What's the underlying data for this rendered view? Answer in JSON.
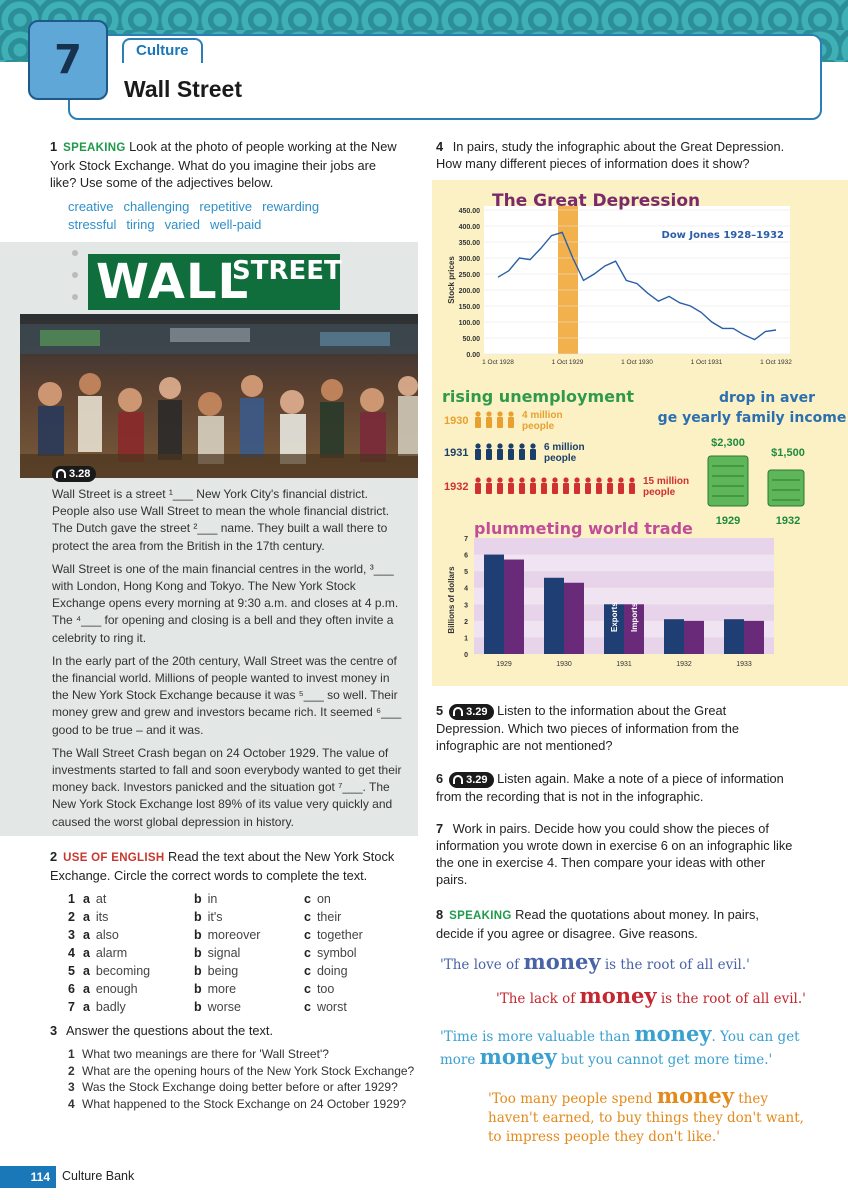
{
  "header": {
    "unit_number": "7",
    "section_tab": "Culture",
    "title": "Wall Street"
  },
  "q1": {
    "number": "1",
    "label": "SPEAKING",
    "text": "Look at the photo of people working at the New York Stock Exchange. What do you imagine their jobs are like? Use some of the adjectives below.",
    "adjectives": [
      "creative",
      "challenging",
      "repetitive",
      "rewarding",
      "stressful",
      "tiring",
      "varied",
      "well-paid"
    ]
  },
  "article": {
    "banner_big": "WALL",
    "banner_small": "STREET",
    "audio": "3.28",
    "paragraphs": [
      "Wall Street is a street ¹___ New York City's financial district. People also use Wall Street to mean the whole financial district. The Dutch gave the street ²___ name. They built a wall there to protect the area from the British in the 17th century.",
      "Wall Street is one of the main financial centres in the world, ³___ with London, Hong Kong and Tokyo. The New York Stock Exchange opens every morning at 9:30 a.m. and closes at 4 p.m. The ⁴___ for opening and closing is a bell and they often invite a celebrity to ring it.",
      "In the early part of the 20th century, Wall Street was the centre of the financial world. Millions of people wanted to invest money in the New York Stock Exchange because it was ⁵___ so well. Their money grew and grew and investors became rich. It seemed ⁶___ good to be true – and it was.",
      "The Wall Street Crash began on 24 October 1929. The value of investments started to fall and soon everybody wanted to get their money back. Investors panicked and the situation got ⁷___. The New York Stock Exchange lost 89% of its value very quickly and caused the worst global depression in history."
    ]
  },
  "q2": {
    "number": "2",
    "label": "USE OF ENGLISH",
    "text": "Read the text about the New York Stock Exchange. Circle the correct words to complete the text.",
    "options": [
      {
        "n": "1",
        "a": "at",
        "b": "in",
        "c": "on"
      },
      {
        "n": "2",
        "a": "its",
        "b": "it's",
        "c": "their"
      },
      {
        "n": "3",
        "a": "also",
        "b": "moreover",
        "c": "together"
      },
      {
        "n": "4",
        "a": "alarm",
        "b": "signal",
        "c": "symbol"
      },
      {
        "n": "5",
        "a": "becoming",
        "b": "being",
        "c": "doing"
      },
      {
        "n": "6",
        "a": "enough",
        "b": "more",
        "c": "too"
      },
      {
        "n": "7",
        "a": "badly",
        "b": "worse",
        "c": "worst"
      }
    ]
  },
  "q3": {
    "number": "3",
    "text": "Answer the questions about the text.",
    "items": [
      {
        "n": "1",
        "t": "What two meanings are there for 'Wall Street'?"
      },
      {
        "n": "2",
        "t": "What are the opening hours of the New York Stock Exchange?"
      },
      {
        "n": "3",
        "t": "Was the Stock Exchange doing better before or after 1929?"
      },
      {
        "n": "4",
        "t": "What happened to the Stock Exchange on 24 October 1929?"
      }
    ]
  },
  "q4": {
    "number": "4",
    "text": "In pairs, study the infographic about the Great Depression. How many different pieces of information does it show?"
  },
  "infographic": {
    "title": "The Great Depression",
    "dow_label": "Dow Jones 1928–1932",
    "ylabel": "Stock prices",
    "unemployment": {
      "title": "rising unemployment",
      "rows": [
        {
          "year": "1930",
          "label": "4 million people",
          "color": "#e8a030"
        },
        {
          "year": "1931",
          "label": "6 million people",
          "color": "#1a3f6b"
        },
        {
          "year": "1932",
          "label": "15 million people",
          "color": "#d0302f"
        }
      ]
    },
    "income": {
      "title": "drop in average yearly family income",
      "v1929": "$2,300",
      "v1932": "$1,500",
      "y1929": "1929",
      "y1932": "1932"
    },
    "trade": {
      "title": "plummeting world trade",
      "ylabel": "Billions of dollars",
      "exports_label": "Exports",
      "imports_label": "Imports"
    }
  },
  "chart_data": [
    {
      "type": "line",
      "title": "The Great Depression",
      "xlabel": "",
      "ylabel": "Stock prices",
      "series": [
        {
          "name": "Dow Jones 1928–1932",
          "x": [
            "1 Oct 1928",
            "Dec 1928",
            "Feb 1929",
            "Apr 1929",
            "Jun 1929",
            "Aug 1929",
            "Sep 1929",
            "Oct 1929",
            "Nov 1929",
            "Jan 1930",
            "Mar 1930",
            "Apr 1930",
            "Jun 1930",
            "Aug 1930",
            "Oct 1930",
            "Dec 1930",
            "Feb 1931",
            "Apr 1931",
            "Jun 1931",
            "Aug 1931",
            "Oct 1931",
            "Dec 1931",
            "Feb 1932",
            "Apr 1932",
            "Jun 1932",
            "Aug 1932",
            "Oct 1932"
          ],
          "values": [
            240,
            260,
            300,
            295,
            330,
            370,
            380,
            300,
            230,
            250,
            275,
            290,
            230,
            220,
            190,
            165,
            180,
            160,
            150,
            130,
            100,
            80,
            80,
            60,
            45,
            70,
            75
          ]
        }
      ],
      "x_ticks": [
        "1 Oct 1928",
        "1 Oct 1929",
        "1 Oct 1930",
        "1 Oct 1931",
        "1 Oct 1932"
      ],
      "y_ticks": [
        "0.00",
        "50.00",
        "100.00",
        "150.00",
        "200.00",
        "250.00",
        "300.00",
        "350.00",
        "400.00",
        "450.00"
      ],
      "ylim": [
        0,
        450
      ],
      "highlight": "Oct 1929"
    },
    {
      "type": "bar",
      "title": "plummeting world trade",
      "ylabel": "Billions of dollars",
      "categories": [
        "1929",
        "1930",
        "1931",
        "1932",
        "1933"
      ],
      "series": [
        {
          "name": "Exports",
          "values": [
            6.0,
            4.6,
            3.0,
            2.1,
            2.1
          ]
        },
        {
          "name": "Imports",
          "values": [
            5.7,
            4.3,
            3.0,
            2.0,
            2.0
          ]
        }
      ],
      "y_ticks": [
        "0",
        "1",
        "2",
        "3",
        "4",
        "5",
        "6",
        "7"
      ],
      "ylim": [
        0,
        7
      ],
      "colors": [
        "#1f3e73",
        "#6a2a7a"
      ]
    }
  ],
  "q5": {
    "number": "5",
    "audio": "3.29",
    "text": "Listen to the information about the Great Depression. Which two pieces of information from the infographic are not mentioned?"
  },
  "q6": {
    "number": "6",
    "audio": "3.29",
    "text": "Listen again. Make a note of a piece of information from the recording that is not in the infographic."
  },
  "q7": {
    "number": "7",
    "text": "Work in pairs. Decide how you could show the pieces of information you wrote down in exercise 6 on an infographic like the one in exercise 4. Then compare your ideas with other pairs."
  },
  "q8": {
    "number": "8",
    "label": "SPEAKING",
    "text": "Read the quotations about money. In pairs, decide if you agree or disagree. Give reasons."
  },
  "quotes": [
    {
      "pre": "'The love of ",
      "m": "money",
      "post": " is the root of all evil.'",
      "color": "#4a62a8"
    },
    {
      "pre": "'The lack of ",
      "m": "money",
      "post": " is the root of all evil.'",
      "color": "#c4272f"
    },
    {
      "pre": "'Time is more valuable than ",
      "m": "money",
      "mid": ". You can get more ",
      "m2": "money",
      "post": " but you cannot get more time.'",
      "color": "#3aa0d0"
    },
    {
      "pre": "'Too many people spend ",
      "m": "money",
      "post": " they haven't earned, to buy things they don't want, to impress people they don't like.'",
      "color": "#e38a1c"
    }
  ],
  "footer": {
    "page": "114",
    "label": "Culture Bank"
  }
}
